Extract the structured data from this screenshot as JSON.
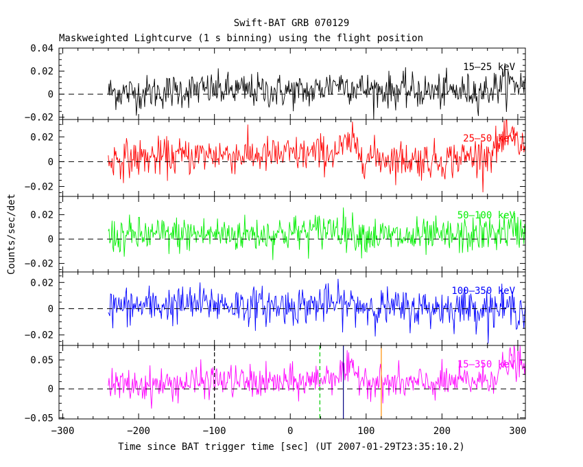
{
  "title": "Swift-BAT GRB 070129",
  "subtitle": "Maskweighted Lightcurve (1 s binning) using the flight position",
  "ylabel": "Counts/sec/det",
  "xlabel": "Time since BAT trigger time [sec] (UT 2007-01-29T23:35:10.2)",
  "chart_data": {
    "type": "line",
    "title": "Swift-BAT GRB 070129",
    "subtitle": "Maskweighted Lightcurve (1 s binning) using the flight position",
    "xlabel": "Time since BAT trigger time [sec] (UT 2007-01-29T23:35:10.2)",
    "ylabel": "Counts/sec/det",
    "xlim": [
      -305,
      310
    ],
    "x_ticks": [
      -300,
      -200,
      -100,
      0,
      100,
      200,
      300
    ],
    "x_tick_labels": [
      "−300",
      "−200",
      "−100",
      "0",
      "100",
      "200",
      "300"
    ],
    "data_start": -240,
    "data_end": 310,
    "bin_seconds": 1,
    "series": [
      {
        "name": "15–25 keV",
        "color": "#000000",
        "ylim": [
          -0.022,
          0.04
        ],
        "y_ticks": [
          -0.02,
          0,
          0.02,
          0.04
        ],
        "y_tick_labels": [
          "−0.02",
          "0",
          "0.02",
          "0.04"
        ],
        "approx_profile": [
          [
            -240,
            0.002
          ],
          [
            -200,
            0.001
          ],
          [
            -120,
            0.004
          ],
          [
            -50,
            0.003
          ],
          [
            30,
            0.002
          ],
          [
            60,
            0.01
          ],
          [
            100,
            0.004
          ],
          [
            150,
            0.003
          ],
          [
            200,
            0.002
          ],
          [
            260,
            0.003
          ],
          [
            285,
            0.01
          ],
          [
            310,
            0.008
          ]
        ],
        "noise_sigma": 0.0075
      },
      {
        "name": "25–50 keV",
        "color": "#ff0000",
        "ylim": [
          -0.028,
          0.034
        ],
        "y_ticks": [
          -0.02,
          0,
          0.02
        ],
        "y_tick_labels": [
          "−0.02",
          "0",
          "0.02"
        ],
        "approx_profile": [
          [
            -240,
            0.002
          ],
          [
            -150,
            0.004
          ],
          [
            -100,
            0.006
          ],
          [
            -30,
            0.005
          ],
          [
            20,
            0.006
          ],
          [
            60,
            0.008
          ],
          [
            80,
            0.015
          ],
          [
            100,
            0.004
          ],
          [
            150,
            0.002
          ],
          [
            200,
            0.001
          ],
          [
            260,
            0.006
          ],
          [
            290,
            0.02
          ],
          [
            310,
            0.01
          ]
        ],
        "noise_sigma": 0.0075
      },
      {
        "name": "50–100 keV",
        "color": "#00ee00",
        "ylim": [
          -0.027,
          0.035
        ],
        "y_ticks": [
          -0.02,
          0,
          0.02
        ],
        "y_tick_labels": [
          "−0.02",
          "0",
          "0.02"
        ],
        "approx_profile": [
          [
            -240,
            0.002
          ],
          [
            -120,
            0.004
          ],
          [
            -30,
            0.004
          ],
          [
            30,
            0.006
          ],
          [
            60,
            0.01
          ],
          [
            90,
            0.004
          ],
          [
            150,
            0.001
          ],
          [
            220,
            0.002
          ],
          [
            280,
            0.006
          ],
          [
            310,
            0.008
          ]
        ],
        "noise_sigma": 0.0075
      },
      {
        "name": "100–350 keV",
        "color": "#0000ff",
        "ylim": [
          -0.028,
          0.028
        ],
        "y_ticks": [
          -0.02,
          0,
          0.02
        ],
        "y_tick_labels": [
          "−0.02",
          "0",
          "0.02"
        ],
        "approx_profile": [
          [
            -240,
            0.001
          ],
          [
            -100,
            0.004
          ],
          [
            -50,
            0.002
          ],
          [
            0,
            0.002
          ],
          [
            60,
            0.004
          ],
          [
            100,
            0.002
          ],
          [
            150,
            0.0
          ],
          [
            220,
            0.001
          ],
          [
            310,
            0.0
          ]
        ],
        "noise_sigma": 0.0072
      },
      {
        "name": "15–350 keV",
        "color": "#ff00ff",
        "ylim": [
          -0.052,
          0.075
        ],
        "y_ticks": [
          -0.05,
          0,
          0.05
        ],
        "y_tick_labels": [
          "−0.05",
          "0",
          "0.05"
        ],
        "approx_profile": [
          [
            -240,
            0.005
          ],
          [
            -150,
            0.008
          ],
          [
            -100,
            0.015
          ],
          [
            -30,
            0.01
          ],
          [
            20,
            0.012
          ],
          [
            60,
            0.025
          ],
          [
            80,
            0.03
          ],
          [
            110,
            0.012
          ],
          [
            150,
            0.008
          ],
          [
            200,
            0.01
          ],
          [
            260,
            0.015
          ],
          [
            285,
            0.04
          ],
          [
            295,
            0.05
          ],
          [
            310,
            0.03
          ]
        ],
        "noise_sigma": 0.014
      }
    ],
    "markers": [
      {
        "x": -100,
        "color": "#000000",
        "style": "dashed"
      },
      {
        "x": 39,
        "color": "#00cc00",
        "style": "dashed"
      },
      {
        "x": 70,
        "color": "#000080",
        "style": "solid"
      },
      {
        "x": 120,
        "color": "#ff8c00",
        "style": "solid"
      }
    ],
    "zero_line": "dashed black in every panel",
    "grid": false
  }
}
